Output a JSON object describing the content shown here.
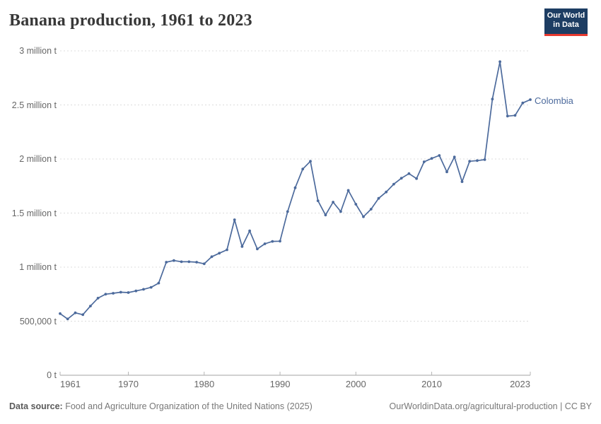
{
  "header": {
    "title": "Banana production, 1961 to 2023"
  },
  "logo": {
    "line1": "Our World",
    "line2": "in Data",
    "bg_color": "#1d3d63",
    "accent_color": "#e7392f"
  },
  "chart_data": {
    "type": "line",
    "title": "Banana production, 1961 to 2023",
    "unit": "tonnes",
    "xlabel": "",
    "ylabel": "",
    "xlim": [
      1961,
      2023
    ],
    "ylim": [
      0,
      3000000
    ],
    "grid": "horizontal-dashed",
    "legend_position": "end-of-line-label",
    "line_color": "#4c6a9c",
    "years": [
      1961,
      1962,
      1963,
      1964,
      1965,
      1966,
      1967,
      1968,
      1969,
      1970,
      1971,
      1972,
      1973,
      1974,
      1975,
      1976,
      1977,
      1978,
      1979,
      1980,
      1981,
      1982,
      1983,
      1984,
      1985,
      1986,
      1987,
      1988,
      1989,
      1990,
      1991,
      1992,
      1993,
      1994,
      1995,
      1996,
      1997,
      1998,
      1999,
      2000,
      2001,
      2002,
      2003,
      2004,
      2005,
      2006,
      2007,
      2008,
      2009,
      2010,
      2011,
      2012,
      2013,
      2014,
      2015,
      2016,
      2017,
      2018,
      2019,
      2020,
      2021,
      2022,
      2023
    ],
    "series": [
      {
        "name": "Colombia",
        "values": [
          570000,
          520000,
          577000,
          560000,
          640000,
          713000,
          750000,
          758000,
          768000,
          765000,
          780000,
          795000,
          813000,
          852000,
          1046000,
          1061000,
          1050000,
          1050000,
          1046000,
          1031000,
          1096000,
          1129000,
          1160000,
          1438000,
          1190000,
          1335000,
          1168000,
          1216000,
          1238000,
          1240000,
          1514000,
          1734000,
          1907000,
          1979000,
          1614000,
          1482000,
          1601000,
          1514000,
          1710000,
          1582000,
          1466000,
          1536000,
          1636000,
          1695000,
          1767000,
          1822000,
          1865000,
          1819000,
          1974000,
          2005000,
          2033000,
          1881000,
          2018000,
          1790000,
          1979000,
          1985000,
          1994000,
          2554000,
          2900000,
          2397000,
          2403000,
          2518000,
          2549000
        ]
      }
    ],
    "y_ticks": [
      {
        "value": 0,
        "label": "0 t"
      },
      {
        "value": 500000,
        "label": "500,000 t"
      },
      {
        "value": 1000000,
        "label": "1 million t"
      },
      {
        "value": 1500000,
        "label": "1.5 million t"
      },
      {
        "value": 2000000,
        "label": "2 million t"
      },
      {
        "value": 2500000,
        "label": "2.5 million t"
      },
      {
        "value": 3000000,
        "label": "3 million t"
      }
    ],
    "x_ticks": [
      {
        "value": 1961,
        "label": "1961",
        "align": "start"
      },
      {
        "value": 1970,
        "label": "1970",
        "align": "middle"
      },
      {
        "value": 1980,
        "label": "1980",
        "align": "middle"
      },
      {
        "value": 1990,
        "label": "1990",
        "align": "middle"
      },
      {
        "value": 2000,
        "label": "2000",
        "align": "middle"
      },
      {
        "value": 2010,
        "label": "2010",
        "align": "middle"
      },
      {
        "value": 2023,
        "label": "2023",
        "align": "end"
      }
    ]
  },
  "footer": {
    "source_label": "Data source:",
    "source_text": "Food and Agriculture Organization of the United Nations (2025)",
    "link_text": "OurWorldinData.org/agricultural-production | CC BY"
  }
}
